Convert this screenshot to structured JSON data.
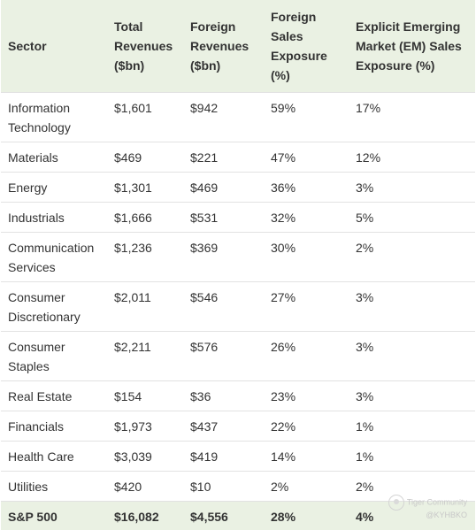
{
  "table": {
    "headers": [
      "Sector",
      "Total Revenues ($bn)",
      "Foreign Revenues ($bn)",
      "Foreign Sales Exposure (%)",
      "Explicit Emerging Market (EM) Sales Exposure (%)"
    ],
    "rows": [
      [
        "Information Technology",
        "$1,601",
        "$942",
        "59%",
        "17%"
      ],
      [
        "Materials",
        "$469",
        "$221",
        "47%",
        "12%"
      ],
      [
        "Energy",
        "$1,301",
        "$469",
        "36%",
        "3%"
      ],
      [
        "Industrials",
        "$1,666",
        "$531",
        "32%",
        "5%"
      ],
      [
        "Communication Services",
        "$1,236",
        "$369",
        "30%",
        "2%"
      ],
      [
        "Consumer Discretionary",
        "$2,011",
        "$546",
        "27%",
        "3%"
      ],
      [
        "Consumer Staples",
        "$2,211",
        "$576",
        "26%",
        "3%"
      ],
      [
        "Real Estate",
        "$154",
        "$36",
        "23%",
        "3%"
      ],
      [
        "Financials",
        "$1,973",
        "$437",
        "22%",
        "1%"
      ],
      [
        "Health Care",
        "$3,039",
        "$419",
        "14%",
        "1%"
      ],
      [
        "Utilities",
        "$420",
        "$10",
        "2%",
        "2%"
      ]
    ],
    "total": [
      "S&P 500",
      "$16,082",
      "$4,556",
      "28%",
      "4%"
    ]
  },
  "watermark": {
    "brand": "Tiger Community",
    "handle": "@KYHBKO"
  },
  "colors": {
    "header_bg": "#eaf1e3",
    "total_bg": "#eaf1e3",
    "row_border": "#e2e2e2",
    "text": "#333333"
  }
}
